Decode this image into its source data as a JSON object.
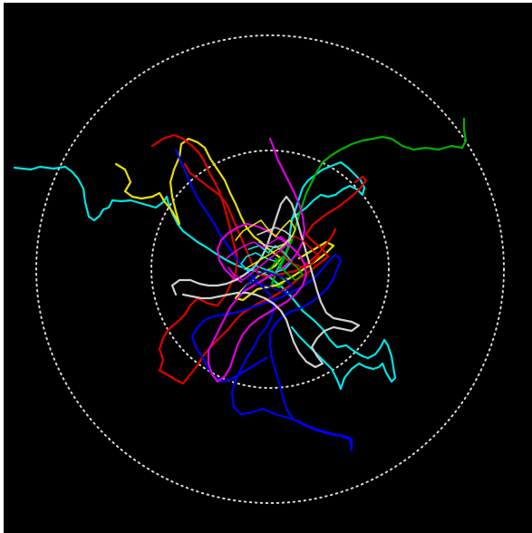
{
  "figure": {
    "background": "#000000",
    "frame_color": "#ffffff",
    "rings": {
      "count": 2,
      "color": "#d8d8d8",
      "style": "dotted"
    },
    "tracks": [
      {
        "name": "cyan-track",
        "color": "#00e5e5"
      },
      {
        "name": "green-track",
        "color": "#00b000"
      },
      {
        "name": "yellow-track",
        "color": "#e8e000"
      },
      {
        "name": "red-track",
        "color": "#e00000"
      },
      {
        "name": "blue-track",
        "color": "#0000f0"
      },
      {
        "name": "magenta-track",
        "color": "#e000e0"
      },
      {
        "name": "white-track",
        "color": "#d0d0d0"
      }
    ]
  }
}
